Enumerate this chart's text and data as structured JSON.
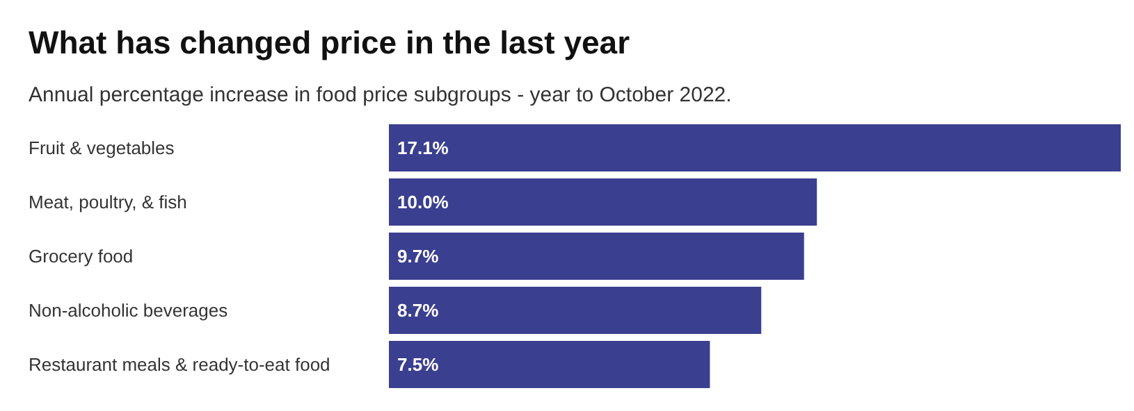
{
  "chart_data": {
    "type": "bar",
    "orientation": "horizontal",
    "title": "What has changed price in the last year",
    "subtitle": "Annual percentage increase in food price subgroups - year to October 2022.",
    "categories": [
      "Fruit & vegetables",
      "Meat, poultry, & fish",
      "Grocery food",
      "Non-alcoholic beverages",
      "Restaurant meals & ready-to-eat food"
    ],
    "values": [
      17.1,
      10.0,
      9.7,
      8.7,
      7.5
    ],
    "color": "#3b3f8f",
    "value_labels": [
      "17.1%",
      "10.0%",
      "9.7%",
      "8.7%",
      "7.5%"
    ]
  }
}
